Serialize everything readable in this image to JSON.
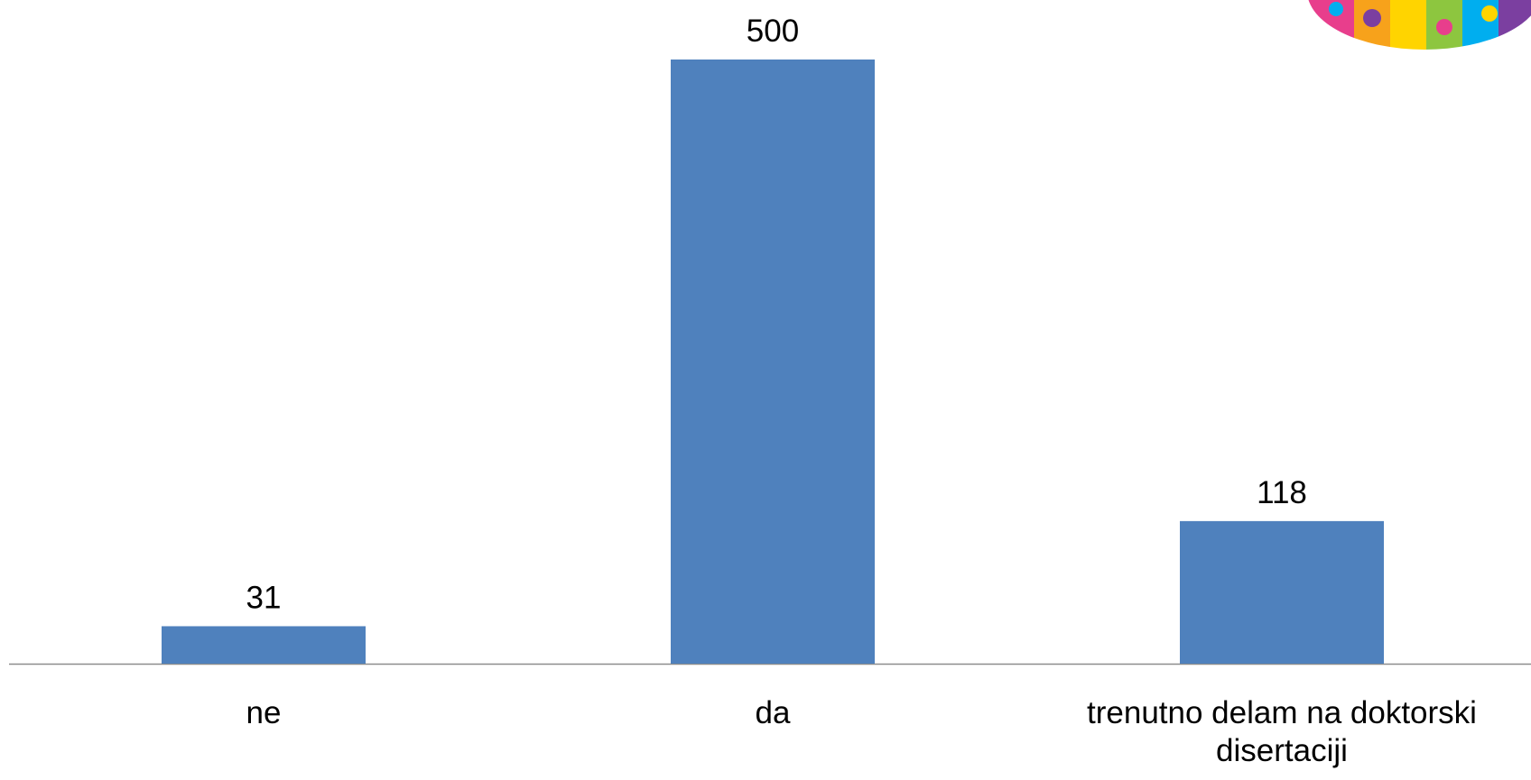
{
  "chart_data": {
    "type": "bar",
    "categories": [
      "ne",
      "da",
      "trenutno delam na doktorski disertaciji"
    ],
    "values": [
      31,
      500,
      118
    ],
    "color": "#4f81bd"
  }
}
